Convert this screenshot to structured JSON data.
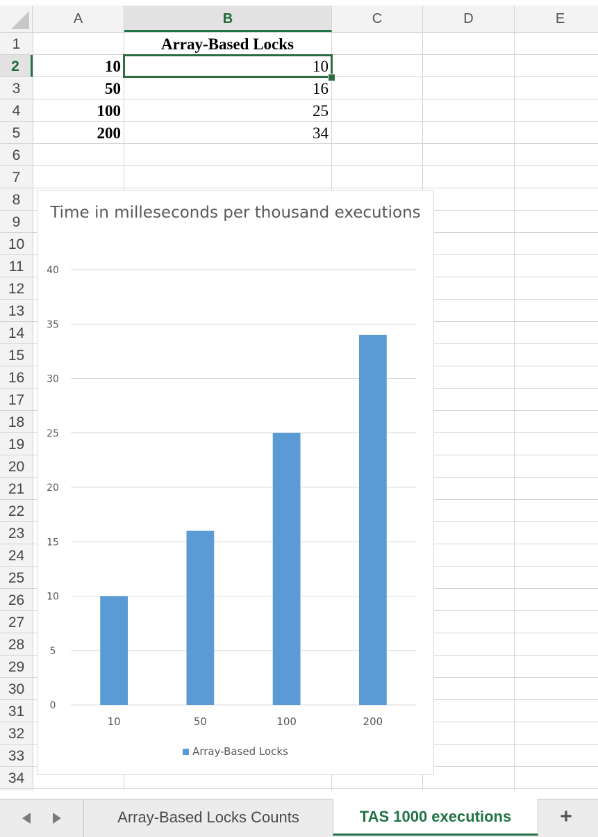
{
  "columns": [
    "A",
    "B",
    "C",
    "D",
    "E"
  ],
  "active_column": "B",
  "rows": [
    "1",
    "2",
    "3",
    "4",
    "5",
    "6",
    "7",
    "8",
    "9",
    "10",
    "11",
    "12",
    "13",
    "14",
    "15",
    "16",
    "17",
    "18",
    "19",
    "20",
    "21",
    "22",
    "23",
    "24",
    "25",
    "26",
    "27",
    "28",
    "29",
    "30",
    "31",
    "32",
    "33",
    "34"
  ],
  "active_row": "2",
  "cells": {
    "B1": "Array-Based Locks",
    "A2": "10",
    "B2": "10",
    "A3": "50",
    "B3": "16",
    "A4": "100",
    "B4": "25",
    "A5": "200",
    "B5": "34"
  },
  "chart_data": {
    "type": "bar",
    "title": "Time in  milleseconds per thousand executions",
    "categories": [
      "10",
      "50",
      "100",
      "200"
    ],
    "series": [
      {
        "name": "Array-Based Locks",
        "values": [
          10,
          16,
          25,
          34
        ]
      }
    ],
    "ylim": [
      0,
      40
    ],
    "yticks": [
      "0",
      "5",
      "10",
      "15",
      "20",
      "25",
      "30",
      "35",
      "40"
    ],
    "legend": "bottom",
    "grid": true,
    "bar_color": "#5b9bd5"
  },
  "tabs": [
    {
      "label": "Array-Based Locks Counts",
      "active": false
    },
    {
      "label": "TAS 1000 executions",
      "active": true
    }
  ],
  "add_sheet_label": "+",
  "colors": {
    "accent": "#217346",
    "selection": "#2f6b43"
  }
}
